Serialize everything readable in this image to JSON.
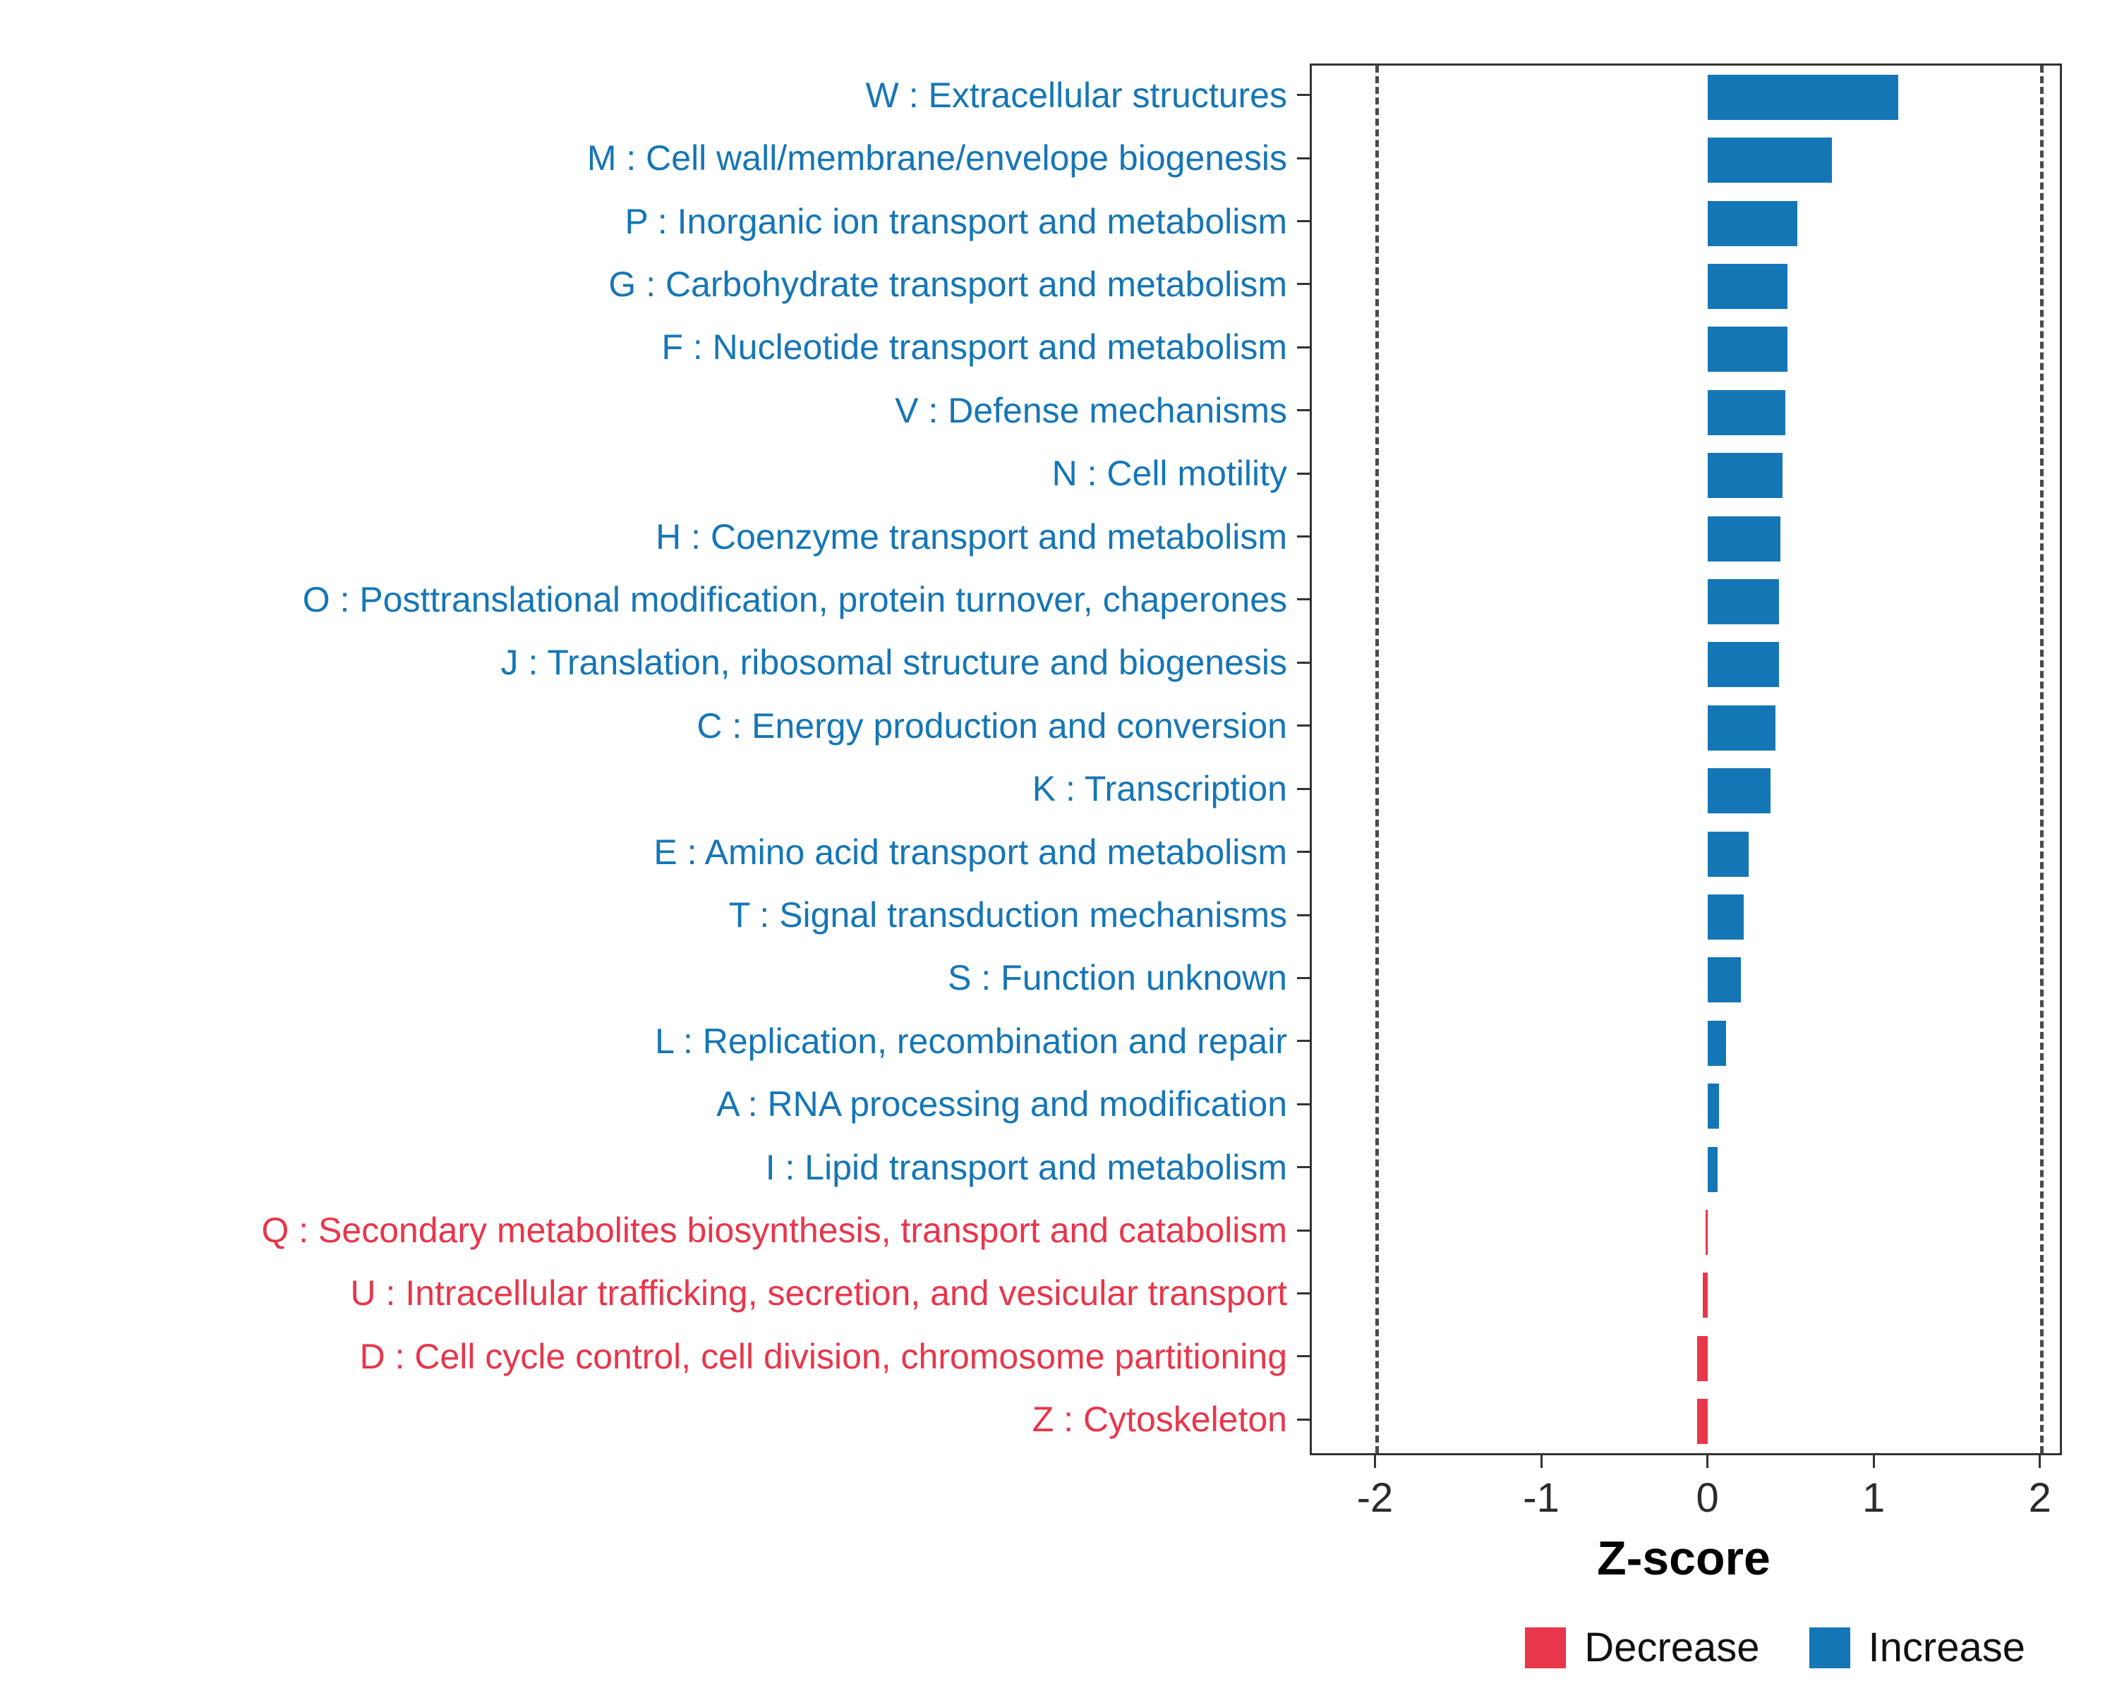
{
  "chart_data": {
    "type": "bar",
    "orientation": "horizontal",
    "title": "",
    "xlabel": "Z-score",
    "xlim": [
      -2.38,
      2.12
    ],
    "x_ticks": [
      -2,
      -1,
      0,
      1,
      2
    ],
    "x_tick_labels": [
      "-2",
      "-1",
      "0",
      "1",
      "2"
    ],
    "dashed_lines": [
      -2,
      2
    ],
    "grid": false,
    "colors": {
      "Increase": "#1576B6",
      "Decrease": "#E8364A"
    },
    "legend_position": "bottom-right",
    "legend": [
      {
        "label": "Decrease",
        "color": "#E8364A"
      },
      {
        "label": "Increase",
        "color": "#1576B6"
      }
    ],
    "categories": [
      {
        "label": "W : Extracellular structures",
        "value": 1.15,
        "direction": "Increase"
      },
      {
        "label": "M : Cell wall/membrane/envelope biogenesis",
        "value": 0.75,
        "direction": "Increase"
      },
      {
        "label": "P : Inorganic ion transport and metabolism",
        "value": 0.54,
        "direction": "Increase"
      },
      {
        "label": "G : Carbohydrate transport and metabolism",
        "value": 0.48,
        "direction": "Increase"
      },
      {
        "label": "F : Nucleotide transport and metabolism",
        "value": 0.48,
        "direction": "Increase"
      },
      {
        "label": "V : Defense mechanisms",
        "value": 0.47,
        "direction": "Increase"
      },
      {
        "label": "N : Cell motility",
        "value": 0.45,
        "direction": "Increase"
      },
      {
        "label": "H : Coenzyme transport and metabolism",
        "value": 0.44,
        "direction": "Increase"
      },
      {
        "label": "O : Posttranslational modification, protein turnover, chaperones",
        "value": 0.43,
        "direction": "Increase"
      },
      {
        "label": "J : Translation, ribosomal structure and biogenesis",
        "value": 0.43,
        "direction": "Increase"
      },
      {
        "label": "C : Energy production and conversion",
        "value": 0.41,
        "direction": "Increase"
      },
      {
        "label": "K : Transcription",
        "value": 0.38,
        "direction": "Increase"
      },
      {
        "label": "E : Amino acid transport and metabolism",
        "value": 0.25,
        "direction": "Increase"
      },
      {
        "label": "T : Signal transduction mechanisms",
        "value": 0.22,
        "direction": "Increase"
      },
      {
        "label": "S : Function unknown",
        "value": 0.2,
        "direction": "Increase"
      },
      {
        "label": "L : Replication, recombination and repair",
        "value": 0.11,
        "direction": "Increase"
      },
      {
        "label": "A : RNA processing and modification",
        "value": 0.07,
        "direction": "Increase"
      },
      {
        "label": "I : Lipid transport and metabolism",
        "value": 0.06,
        "direction": "Increase"
      },
      {
        "label": "Q : Secondary metabolites biosynthesis, transport and catabolism",
        "value": -0.01,
        "direction": "Decrease"
      },
      {
        "label": "U : Intracellular trafficking, secretion, and vesicular transport",
        "value": -0.03,
        "direction": "Decrease"
      },
      {
        "label": "D : Cell cycle control, cell division, chromosome partitioning",
        "value": -0.06,
        "direction": "Decrease"
      },
      {
        "label": "Z : Cytoskeleton",
        "value": -0.06,
        "direction": "Decrease"
      }
    ]
  }
}
